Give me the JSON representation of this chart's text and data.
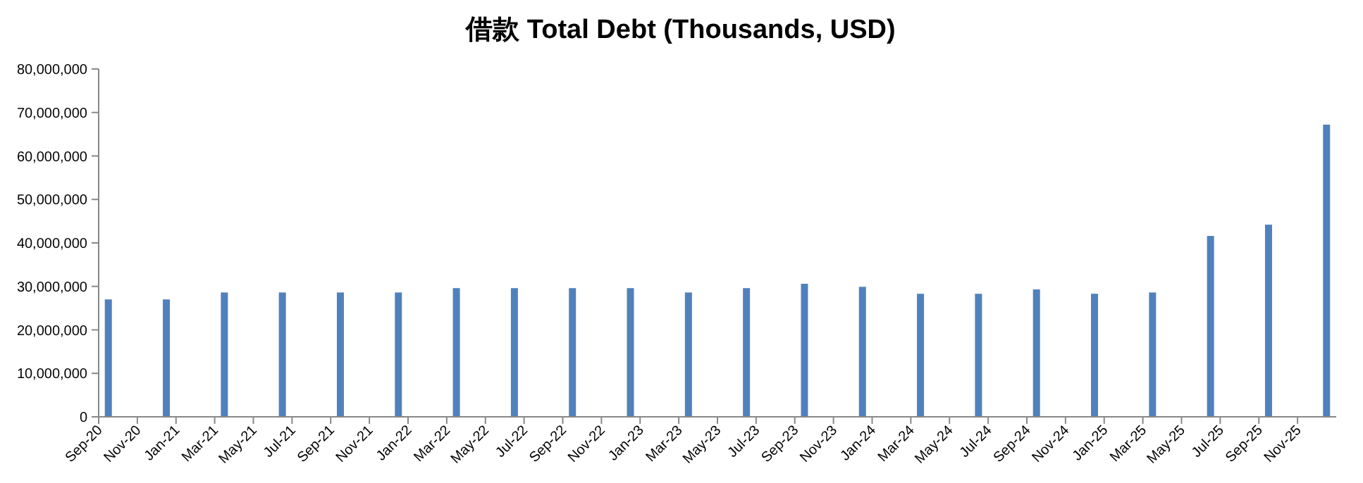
{
  "chart_data": {
    "type": "bar",
    "title": "借款 Total Debt (Thousands, USD)",
    "x": [
      "2020-09-16",
      "2020-12-16",
      "2021-03-16",
      "2021-06-16",
      "2021-09-16",
      "2021-12-16",
      "2022-03-16",
      "2022-06-16",
      "2022-09-16",
      "2022-12-16",
      "2023-03-16",
      "2023-06-16",
      "2023-09-16",
      "2023-12-16",
      "2024-03-16",
      "2024-06-16",
      "2024-09-16",
      "2024-12-16",
      "2025-03-16",
      "2025-06-16",
      "2025-09-16",
      "2025-12-16"
    ],
    "values": [
      27000000,
      27000000,
      28600000,
      28600000,
      28600000,
      28600000,
      29600000,
      29600000,
      29600000,
      29600000,
      28600000,
      29600000,
      30600000,
      29900000,
      28300000,
      28300000,
      29300000,
      28300000,
      28600000,
      41600000,
      44200000,
      67200000
    ],
    "color": "#4f81bd",
    "xlim": [
      "2020-09",
      "2026-01"
    ],
    "xticks": [
      {
        "value": "2020-09",
        "label": "Sep-20"
      },
      {
        "value": "2020-11",
        "label": "Nov-20"
      },
      {
        "value": "2021-01",
        "label": "Jan-21"
      },
      {
        "value": "2021-03",
        "label": "Mar-21"
      },
      {
        "value": "2021-05",
        "label": "May-21"
      },
      {
        "value": "2021-07",
        "label": "Jul-21"
      },
      {
        "value": "2021-09",
        "label": "Sep-21"
      },
      {
        "value": "2021-11",
        "label": "Nov-21"
      },
      {
        "value": "2022-01",
        "label": "Jan-22"
      },
      {
        "value": "2022-03",
        "label": "Mar-22"
      },
      {
        "value": "2022-05",
        "label": "May-22"
      },
      {
        "value": "2022-07",
        "label": "Jul-22"
      },
      {
        "value": "2022-09",
        "label": "Sep-22"
      },
      {
        "value": "2022-11",
        "label": "Nov-22"
      },
      {
        "value": "2023-01",
        "label": "Jan-23"
      },
      {
        "value": "2023-03",
        "label": "Mar-23"
      },
      {
        "value": "2023-05",
        "label": "May-23"
      },
      {
        "value": "2023-07",
        "label": "Jul-23"
      },
      {
        "value": "2023-09",
        "label": "Sep-23"
      },
      {
        "value": "2023-11",
        "label": "Nov-23"
      },
      {
        "value": "2024-01",
        "label": "Jan-24"
      },
      {
        "value": "2024-03",
        "label": "Mar-24"
      },
      {
        "value": "2024-05",
        "label": "May-24"
      },
      {
        "value": "2024-07",
        "label": "Jul-24"
      },
      {
        "value": "2024-09",
        "label": "Sep-24"
      },
      {
        "value": "2024-11",
        "label": "Nov-24"
      },
      {
        "value": "2025-01",
        "label": "Jan-25"
      },
      {
        "value": "2025-03",
        "label": "Mar-25"
      },
      {
        "value": "2025-05",
        "label": "May-25"
      },
      {
        "value": "2025-07",
        "label": "Jul-25"
      },
      {
        "value": "2025-09",
        "label": "Sep-25"
      },
      {
        "value": "2025-11",
        "label": "Nov-25"
      }
    ],
    "ylim": [
      0,
      80000000
    ],
    "yticks": [
      0,
      {
        "value": 10000000,
        "label": "10,000,000"
      },
      {
        "value": 20000000,
        "label": "20,000,000"
      },
      {
        "value": 30000000,
        "label": "30,000,000"
      },
      {
        "value": 40000000,
        "label": "40,000,000"
      },
      {
        "value": 50000000,
        "label": "50,000,000"
      },
      {
        "value": 60000000,
        "label": "60,000,000"
      },
      {
        "value": 70000000,
        "label": "70,000,000"
      },
      {
        "value": 80000000,
        "label": "80,000,000"
      }
    ],
    "grid": false
  }
}
